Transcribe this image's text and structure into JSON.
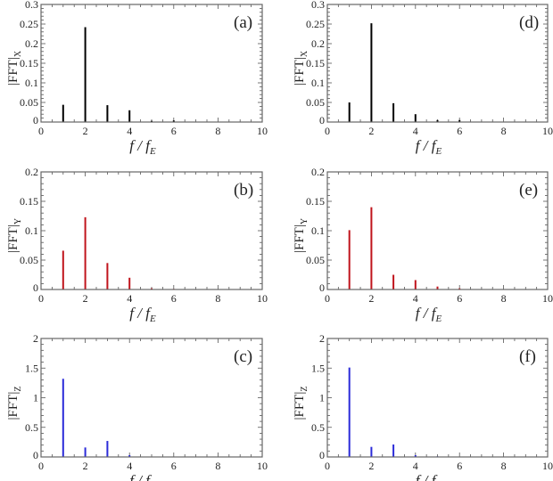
{
  "chart_data": [
    {
      "panel": "(a)",
      "type": "bar",
      "ylabel": "|FFT|",
      "ylabel_sub": "X",
      "xlabel": "f / f",
      "xlabel_sub": "E",
      "xlim": [
        0,
        10
      ],
      "ylim": [
        0,
        0.3
      ],
      "xticks": [
        0,
        2,
        4,
        6,
        8,
        10
      ],
      "yticks": [
        0,
        0.05,
        0.1,
        0.15,
        0.2,
        0.25,
        0.3
      ],
      "x": [
        1,
        2,
        3,
        4,
        5,
        6
      ],
      "values": [
        0.044,
        0.242,
        0.043,
        0.03,
        0.003,
        0.004
      ],
      "color": "#000000"
    },
    {
      "panel": "(b)",
      "type": "bar",
      "ylabel": "|FFT|",
      "ylabel_sub": "Y",
      "xlabel": "f / f",
      "xlabel_sub": "E",
      "xlim": [
        0,
        10
      ],
      "ylim": [
        0,
        0.2
      ],
      "xticks": [
        0,
        2,
        4,
        6,
        8,
        10
      ],
      "yticks": [
        0,
        0.05,
        0.1,
        0.15,
        0.2
      ],
      "x": [
        1,
        2,
        3,
        4,
        5,
        6
      ],
      "values": [
        0.066,
        0.123,
        0.045,
        0.02,
        0.002,
        0.001
      ],
      "color": "#c0141c"
    },
    {
      "panel": "(c)",
      "type": "bar",
      "ylabel": "|FFT|",
      "ylabel_sub": "Z",
      "xlabel": "f / f",
      "xlabel_sub": "E",
      "xlim": [
        0,
        10
      ],
      "ylim": [
        0,
        2
      ],
      "xticks": [
        0,
        2,
        4,
        6,
        8,
        10
      ],
      "yticks": [
        0,
        0.5,
        1,
        1.5,
        2
      ],
      "x": [
        1,
        2,
        3,
        4
      ],
      "values": [
        1.32,
        0.16,
        0.27,
        0.03
      ],
      "color": "#2b2bd9"
    },
    {
      "panel": "(d)",
      "type": "bar",
      "ylabel": "|FFT|",
      "ylabel_sub": "X",
      "xlabel": "f / f",
      "xlabel_sub": "E",
      "xlim": [
        0,
        10
      ],
      "ylim": [
        0,
        0.3
      ],
      "xticks": [
        0,
        2,
        4,
        6,
        8,
        10
      ],
      "yticks": [
        0,
        0.05,
        0.1,
        0.15,
        0.2,
        0.25,
        0.3
      ],
      "x": [
        1,
        2,
        3,
        4,
        5,
        6
      ],
      "values": [
        0.05,
        0.252,
        0.048,
        0.02,
        0.005,
        0.005
      ],
      "color": "#000000"
    },
    {
      "panel": "(e)",
      "type": "bar",
      "ylabel": "|FFT|",
      "ylabel_sub": "Y",
      "xlabel": "f / f",
      "xlabel_sub": "E",
      "xlim": [
        0,
        10
      ],
      "ylim": [
        0,
        0.2
      ],
      "xticks": [
        0,
        2,
        4,
        6,
        8,
        10
      ],
      "yticks": [
        0,
        0.05,
        0.1,
        0.15,
        0.2
      ],
      "x": [
        1,
        2,
        3,
        4,
        5,
        6
      ],
      "values": [
        0.101,
        0.14,
        0.025,
        0.016,
        0.005,
        0.002
      ],
      "color": "#c0141c"
    },
    {
      "panel": "(f)",
      "type": "bar",
      "ylabel": "|FFT|",
      "ylabel_sub": "Z",
      "xlabel": "f / f",
      "xlabel_sub": "E",
      "xlim": [
        0,
        10
      ],
      "ylim": [
        0,
        2
      ],
      "xticks": [
        0,
        2,
        4,
        6,
        8,
        10
      ],
      "yticks": [
        0,
        0.5,
        1,
        1.5,
        2
      ],
      "x": [
        1,
        2,
        3,
        4,
        5
      ],
      "values": [
        1.51,
        0.17,
        0.21,
        0.03,
        0.01
      ],
      "color": "#2b2bd9"
    }
  ]
}
